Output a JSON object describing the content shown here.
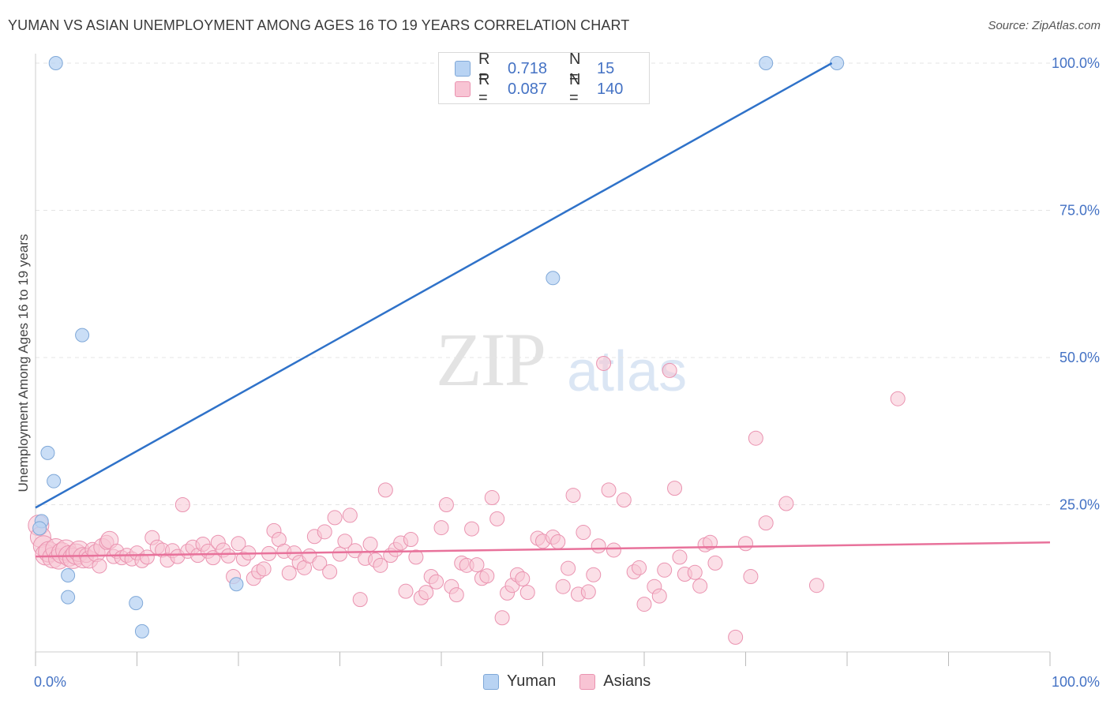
{
  "title": "YUMAN VS ASIAN UNEMPLOYMENT AMONG AGES 16 TO 19 YEARS CORRELATION CHART",
  "source": "Source: ZipAtlas.com",
  "watermark": {
    "zip": "ZIP",
    "atlas": "atlas"
  },
  "legend": {
    "rows": [
      {
        "r_label": "R =",
        "r_value": "0.718",
        "n_label": "N =",
        "n_value": "15"
      },
      {
        "r_label": "R =",
        "r_value": "0.087",
        "n_label": "N =",
        "n_value": "140"
      }
    ]
  },
  "bottom_legend": {
    "yuman": "Yuman",
    "asians": "Asians"
  },
  "colors": {
    "yuman_fill": "#b8d3f3",
    "yuman_stroke": "#7fa8d8",
    "yuman_line": "#2f72c9",
    "asian_fill": "#f8c4d4",
    "asian_stroke": "#ea93b0",
    "asian_line": "#e8729b",
    "grid": "#e4e4e4",
    "tick_label": "#4472c4"
  },
  "chart_data": {
    "type": "scatter",
    "title": "YUMAN VS ASIAN UNEMPLOYMENT AMONG AGES 16 TO 19 YEARS CORRELATION CHART",
    "xlabel": "",
    "ylabel": "Unemployment Among Ages 16 to 19 years",
    "xlim": [
      0,
      100
    ],
    "ylim": [
      0,
      100
    ],
    "x_tick_labels": [
      "0.0%",
      "100.0%"
    ],
    "y_ticks": [
      25,
      50,
      75,
      100
    ],
    "y_tick_labels": [
      "25.0%",
      "50.0%",
      "75.0%",
      "100.0%"
    ],
    "grid": true,
    "series": [
      {
        "name": "Yuman",
        "r": 0.718,
        "n": 15,
        "trend": {
          "x": [
            0,
            78.5
          ],
          "y": [
            24.5,
            100
          ]
        },
        "points": [
          [
            2,
            100
          ],
          [
            56.5,
            100
          ],
          [
            72,
            100
          ],
          [
            79,
            100
          ],
          [
            51,
            63.5
          ],
          [
            4.6,
            53.8
          ],
          [
            1.2,
            33.8
          ],
          [
            1.8,
            29
          ],
          [
            0.6,
            22.2
          ],
          [
            0.4,
            21
          ],
          [
            3.2,
            13
          ],
          [
            3.2,
            9.3
          ],
          [
            9.9,
            8.3
          ],
          [
            10.5,
            3.5
          ],
          [
            19.8,
            11.5
          ]
        ]
      },
      {
        "name": "Asians",
        "r": 0.087,
        "n": 140,
        "trend": {
          "x": [
            0,
            100
          ],
          "y": [
            16.2,
            18.6
          ]
        },
        "points": [
          [
            0.3,
            21.5
          ],
          [
            0.5,
            19.5
          ],
          [
            0.8,
            18
          ],
          [
            1,
            16.5
          ],
          [
            1.3,
            17
          ],
          [
            1.7,
            16
          ],
          [
            2,
            17.5
          ],
          [
            2.3,
            15.8
          ],
          [
            2.6,
            16.8
          ],
          [
            3,
            17.3
          ],
          [
            3.3,
            16.3
          ],
          [
            3.7,
            15.9
          ],
          [
            4,
            16.6
          ],
          [
            4.3,
            17.1
          ],
          [
            4.7,
            16
          ],
          [
            5,
            16.4
          ],
          [
            5.3,
            15.7
          ],
          [
            5.6,
            17.4
          ],
          [
            6,
            16.8
          ],
          [
            6.3,
            14.6
          ],
          [
            6.6,
            17.8
          ],
          [
            7,
            18.6
          ],
          [
            7.3,
            19
          ],
          [
            7.7,
            16.2
          ],
          [
            8,
            17.1
          ],
          [
            8.5,
            16
          ],
          [
            9,
            16.4
          ],
          [
            9.5,
            15.8
          ],
          [
            10,
            16.8
          ],
          [
            10.5,
            15.5
          ],
          [
            11,
            16.1
          ],
          [
            11.5,
            19.4
          ],
          [
            12,
            17.8
          ],
          [
            12.5,
            17.3
          ],
          [
            13,
            15.6
          ],
          [
            13.5,
            17.2
          ],
          [
            14,
            16.2
          ],
          [
            14.5,
            25
          ],
          [
            15,
            17.1
          ],
          [
            15.5,
            17.8
          ],
          [
            16,
            16.4
          ],
          [
            16.5,
            18.3
          ],
          [
            17,
            17.1
          ],
          [
            17.5,
            16
          ],
          [
            18,
            18.6
          ],
          [
            18.5,
            17.3
          ],
          [
            19,
            16.3
          ],
          [
            19.5,
            12.8
          ],
          [
            20,
            18.4
          ],
          [
            20.5,
            15.8
          ],
          [
            21,
            16.8
          ],
          [
            21.5,
            12.5
          ],
          [
            22,
            13.6
          ],
          [
            22.5,
            14.1
          ],
          [
            23,
            16.7
          ],
          [
            23.5,
            20.6
          ],
          [
            24,
            19.1
          ],
          [
            24.5,
            17.1
          ],
          [
            25,
            13.4
          ],
          [
            25.5,
            16.8
          ],
          [
            26,
            15.2
          ],
          [
            26.5,
            14.3
          ],
          [
            27,
            16.3
          ],
          [
            27.5,
            19.6
          ],
          [
            28,
            15.1
          ],
          [
            28.5,
            20.4
          ],
          [
            29,
            13.6
          ],
          [
            29.5,
            22.8
          ],
          [
            30,
            16.6
          ],
          [
            30.5,
            18.8
          ],
          [
            31,
            23.2
          ],
          [
            31.5,
            17.2
          ],
          [
            32,
            8.9
          ],
          [
            32.5,
            15.9
          ],
          [
            33,
            18.3
          ],
          [
            33.5,
            15.6
          ],
          [
            34,
            14.7
          ],
          [
            34.5,
            27.5
          ],
          [
            35,
            16.4
          ],
          [
            35.5,
            17.4
          ],
          [
            36,
            18.5
          ],
          [
            36.5,
            10.3
          ],
          [
            37,
            19.1
          ],
          [
            37.5,
            16.1
          ],
          [
            38,
            9.2
          ],
          [
            38.5,
            10.1
          ],
          [
            39,
            12.8
          ],
          [
            39.5,
            11.9
          ],
          [
            40,
            21.1
          ],
          [
            40.5,
            25
          ],
          [
            41,
            11.1
          ],
          [
            41.5,
            9.7
          ],
          [
            42,
            15.1
          ],
          [
            42.5,
            14.7
          ],
          [
            43,
            20.9
          ],
          [
            43.5,
            14.8
          ],
          [
            44,
            12.5
          ],
          [
            44.5,
            12.9
          ],
          [
            45,
            26.2
          ],
          [
            45.5,
            22.6
          ],
          [
            46,
            5.8
          ],
          [
            46.5,
            10
          ],
          [
            47,
            11.3
          ],
          [
            47.5,
            13.1
          ],
          [
            48,
            12.4
          ],
          [
            48.5,
            10.1
          ],
          [
            49.5,
            19.3
          ],
          [
            50,
            18.8
          ],
          [
            51,
            19.5
          ],
          [
            51.5,
            18.7
          ],
          [
            52,
            11.1
          ],
          [
            52.5,
            14.2
          ],
          [
            53,
            26.6
          ],
          [
            53.5,
            9.8
          ],
          [
            54,
            20.3
          ],
          [
            54.5,
            10.2
          ],
          [
            55,
            13.1
          ],
          [
            55.5,
            18
          ],
          [
            56,
            49
          ],
          [
            56.5,
            27.5
          ],
          [
            57,
            17.3
          ],
          [
            58,
            25.8
          ],
          [
            59,
            13.6
          ],
          [
            59.5,
            14.3
          ],
          [
            60,
            8.1
          ],
          [
            61,
            11.1
          ],
          [
            61.5,
            9.5
          ],
          [
            62,
            13.9
          ],
          [
            62.5,
            47.8
          ],
          [
            63,
            27.8
          ],
          [
            63.5,
            16.1
          ],
          [
            64,
            13.2
          ],
          [
            65,
            13.5
          ],
          [
            65.5,
            11.2
          ],
          [
            66,
            18.2
          ],
          [
            66.5,
            18.6
          ],
          [
            67,
            15.1
          ],
          [
            69,
            2.5
          ],
          [
            70,
            18.4
          ],
          [
            70.5,
            12.8
          ],
          [
            71,
            36.3
          ],
          [
            72,
            21.9
          ],
          [
            74,
            25.2
          ],
          [
            77,
            11.3
          ],
          [
            85,
            43
          ]
        ]
      }
    ]
  }
}
